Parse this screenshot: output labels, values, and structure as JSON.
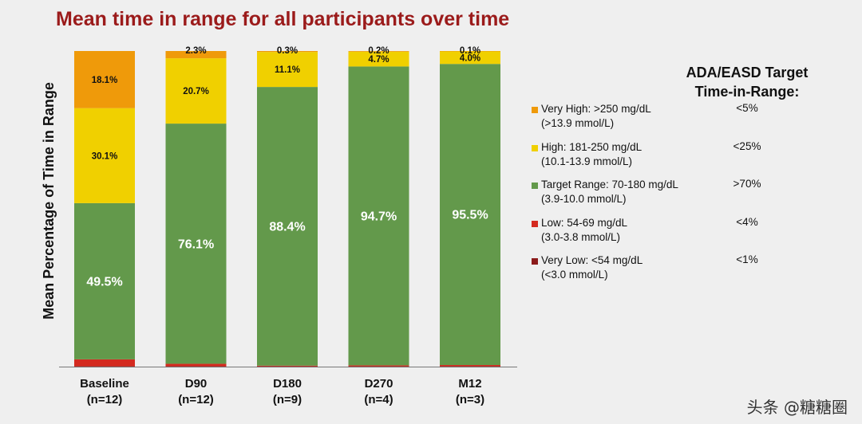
{
  "title": "Mean time in range for all participants over time",
  "chart_data": {
    "type": "bar",
    "stacked": true,
    "ylabel": "Mean Percentage of Time in Range",
    "ylim": [
      0,
      100
    ],
    "categories": [
      {
        "name": "Baseline",
        "n": "(n=12)"
      },
      {
        "name": "D90",
        "n": "(n=12)"
      },
      {
        "name": "D180",
        "n": "(n=9)"
      },
      {
        "name": "D270",
        "n": "(n=4)"
      },
      {
        "name": "M12",
        "n": "(n=3)"
      }
    ],
    "series": [
      {
        "name": "Very Low",
        "color": "#8b1a1a",
        "values": [
          0.1,
          0.1,
          0.1,
          0.1,
          0.1
        ],
        "labels": [
          "",
          "",
          "",
          "",
          ""
        ]
      },
      {
        "name": "Low",
        "color": "#d42a1f",
        "values": [
          2.2,
          0.8,
          0.2,
          0.3,
          0.4
        ],
        "labels": [
          "",
          "",
          "",
          "",
          ""
        ]
      },
      {
        "name": "Target Range",
        "color": "#63994b",
        "values": [
          49.5,
          76.1,
          88.4,
          94.7,
          95.5
        ],
        "labels": [
          "49.5%",
          "76.1%",
          "88.4%",
          "94.7%",
          "95.5%"
        ]
      },
      {
        "name": "High",
        "color": "#f0d000",
        "values": [
          30.1,
          20.7,
          11.1,
          4.7,
          4.0
        ],
        "labels": [
          "30.1%",
          "20.7%",
          "11.1%",
          "4.7%",
          "4.0%"
        ]
      },
      {
        "name": "Very High",
        "color": "#ef9a0a",
        "values": [
          18.1,
          2.3,
          0.3,
          0.2,
          0.1
        ],
        "labels": [
          "18.1%",
          "2.3%",
          "0.3%",
          "0.2%",
          "0.1%"
        ]
      }
    ]
  },
  "target_panel": {
    "title_line1": "ADA/EASD Target",
    "title_line2": "Time-in-Range:",
    "items": [
      {
        "line1": "Very High: >250 mg/dL",
        "line2": "(>13.9 mmol/L)",
        "target": "<5%",
        "color": "#ef9a0a"
      },
      {
        "line1": "High: 181-250 mg/dL",
        "line2": "(10.1-13.9 mmol/L)",
        "target": "<25%",
        "color": "#f0d000"
      },
      {
        "line1": "Target Range: 70-180 mg/dL",
        "line2": "(3.9-10.0 mmol/L)",
        "target": ">70%",
        "color": "#63994b"
      },
      {
        "line1": "Low: 54-69 mg/dL",
        "line2": "(3.0-3.8 mmol/L)",
        "target": "<4%",
        "color": "#d42a1f"
      },
      {
        "line1": "Very Low: <54 mg/dL",
        "line2": "(<3.0 mmol/L)",
        "target": "<1%",
        "color": "#8b1a1a"
      }
    ]
  },
  "watermark": "头条 @糖糖圈"
}
